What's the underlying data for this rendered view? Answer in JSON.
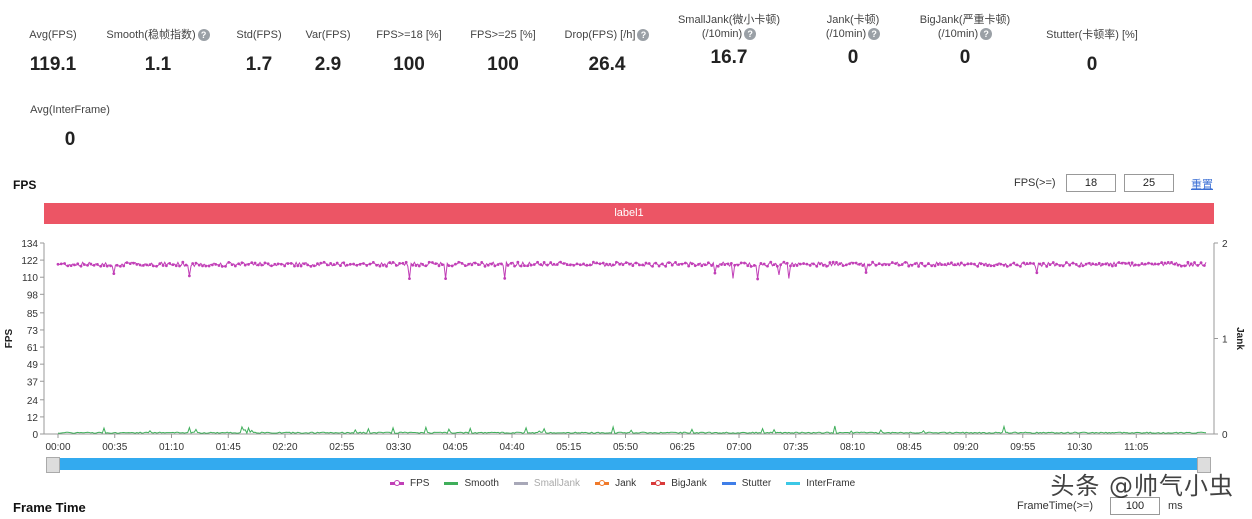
{
  "metrics": [
    {
      "label": "Avg(FPS)",
      "value": "119.1",
      "q": false
    },
    {
      "label": "Smooth(稳帧指数)",
      "value": "1.1",
      "q": true
    },
    {
      "label": "Std(FPS)",
      "value": "1.7",
      "q": false
    },
    {
      "label": "Var(FPS)",
      "value": "2.9",
      "q": false
    },
    {
      "label": "FPS>=18 [%]",
      "value": "100",
      "q": false
    },
    {
      "label": "FPS>=25 [%]",
      "value": "100",
      "q": false
    },
    {
      "label": "Drop(FPS) [/h]",
      "value": "26.4",
      "q": true
    },
    {
      "label": "SmallJank(微小卡顿)",
      "label2": "(/10min)",
      "value": "16.7",
      "q": true
    },
    {
      "label": "Jank(卡顿)",
      "label2": "(/10min)",
      "value": "0",
      "q": true
    },
    {
      "label": "BigJank(严重卡顿)",
      "label2": "(/10min)",
      "value": "0",
      "q": true
    },
    {
      "label": "Stutter(卡顿率) [%]",
      "value": "0",
      "q": false
    },
    {
      "label": "Avg(InterFrame)",
      "value": "0",
      "q": false
    }
  ],
  "fps_section": {
    "title": "FPS",
    "filter_label": "FPS(>=)",
    "threshold1": "18",
    "threshold2": "25",
    "reset": "重置",
    "label_bar": "label1"
  },
  "frame_time_section": {
    "title": "Frame Time",
    "filter_label": "FrameTime(>=)",
    "value": "100",
    "unit": "ms"
  },
  "watermark": "头条 @帅气小虫",
  "legend": [
    {
      "name": "FPS",
      "color": "#c13fb7",
      "marker": true,
      "faded": false
    },
    {
      "name": "Smooth",
      "color": "#3fae5a",
      "marker": false,
      "faded": false
    },
    {
      "name": "SmallJank",
      "color": "#a8a8b8",
      "marker": false,
      "faded": true
    },
    {
      "name": "Jank",
      "color": "#f07a2a",
      "marker": true,
      "faded": false
    },
    {
      "name": "BigJank",
      "color": "#d93a3a",
      "marker": true,
      "faded": false
    },
    {
      "name": "Stutter",
      "color": "#3f7ee8",
      "marker": false,
      "faded": false
    },
    {
      "name": "InterFrame",
      "color": "#3cc8e6",
      "marker": false,
      "faded": false
    }
  ],
  "chart_data": {
    "type": "line",
    "ylabel": "FPS",
    "y2label": "Jank",
    "ylim": [
      0,
      134
    ],
    "y2lim": [
      0,
      2
    ],
    "y_ticks": [
      "0",
      "12",
      "24",
      "37",
      "49",
      "61",
      "73",
      "85",
      "98",
      "110",
      "122",
      "134"
    ],
    "y2_ticks": [
      "0",
      "1",
      "2"
    ],
    "x_ticks": [
      "00:00",
      "00:35",
      "01:10",
      "01:45",
      "02:20",
      "02:55",
      "03:30",
      "04:05",
      "04:40",
      "05:15",
      "05:50",
      "06:25",
      "07:00",
      "07:35",
      "08:10",
      "08:45",
      "09:20",
      "09:55",
      "10:30",
      "11:05"
    ],
    "x_range_seconds": [
      0,
      708
    ],
    "series": [
      {
        "name": "FPS",
        "approx_level": 119.1,
        "range": [
          108,
          122
        ]
      },
      {
        "name": "Smooth",
        "approx_level": 1.1,
        "range": [
          0,
          6
        ]
      }
    ],
    "grid": false,
    "legend_position": "bottom"
  }
}
